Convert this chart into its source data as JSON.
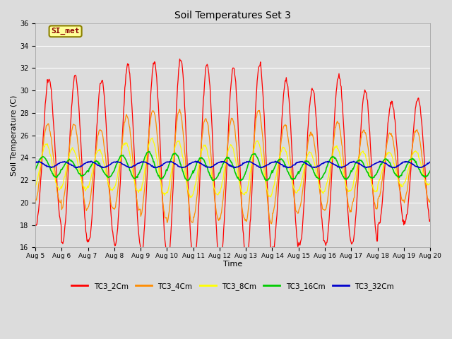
{
  "title": "Soil Temperatures Set 3",
  "xlabel": "Time",
  "ylabel": "Soil Temperature (C)",
  "ylim": [
    16,
    36
  ],
  "yticks": [
    16,
    18,
    20,
    22,
    24,
    26,
    28,
    30,
    32,
    34,
    36
  ],
  "x_labels": [
    "Aug 5",
    "Aug 6",
    "Aug 7",
    "Aug 8",
    "Aug 9",
    "Aug 10",
    "Aug 11",
    "Aug 12",
    "Aug 13",
    "Aug 14",
    "Aug 15",
    "Aug 16",
    "Aug 17",
    "Aug 18",
    "Aug 19",
    "Aug 20"
  ],
  "annotation_text": "SI_met",
  "annotation_color": "#8B0000",
  "annotation_bg": "#FFFF99",
  "annotation_border": "#8B8000",
  "series_colors": {
    "TC3_2Cm": "#FF0000",
    "TC3_4Cm": "#FF8C00",
    "TC3_8Cm": "#FFFF00",
    "TC3_16Cm": "#00CC00",
    "TC3_32Cm": "#0000CD"
  },
  "fig_bg": "#DCDCDC",
  "plot_bg": "#DCDCDC",
  "grid_color": "#FFFFFF",
  "num_days": 15,
  "pts_per_day": 48,
  "figwidth": 6.4,
  "figheight": 4.8,
  "dpi": 100
}
